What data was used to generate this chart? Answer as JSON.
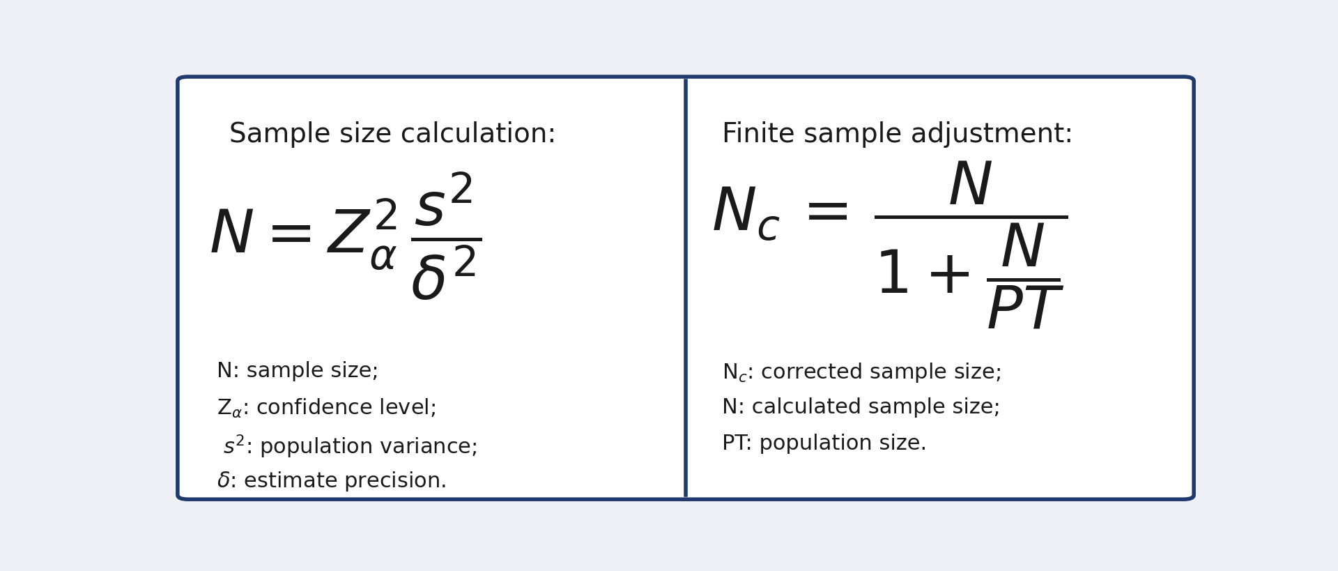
{
  "bg_color": "#eef0f5",
  "box_color": "#ffffff",
  "border_color": "#1f3a6e",
  "border_linewidth": 4,
  "title_left": "Sample size calculation:",
  "title_right": "Finite sample adjustment:",
  "title_fontsize": 28,
  "desc_fontsize": 22,
  "text_color": "#1a1a1a",
  "left_desc": [
    "N: sample size;",
    "Z$_{\\alpha}$: confidence level;",
    " $s^{2}$: population variance;",
    "$\\delta$: estimate precision."
  ],
  "right_desc": [
    "N$_c$: corrected sample size;",
    "N: calculated sample size;",
    "PT: population size."
  ]
}
